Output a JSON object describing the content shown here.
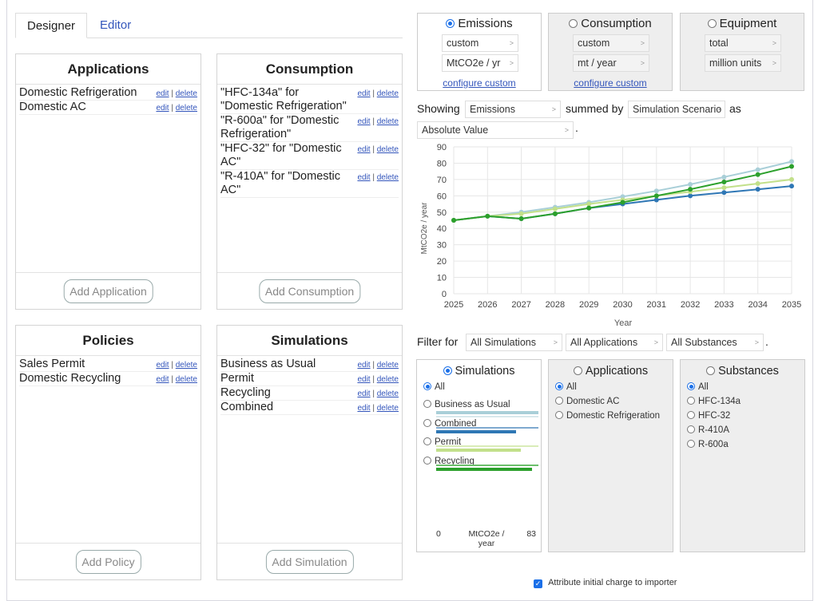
{
  "tabs": [
    {
      "label": "Designer"
    },
    {
      "label": "Editor"
    }
  ],
  "panels": {
    "applications": {
      "title": "Applications",
      "items": [
        {
          "label": "Domestic Refrigeration"
        },
        {
          "label": "Domestic AC"
        }
      ],
      "add_label": "Add Application"
    },
    "consumption": {
      "title": "Consumption",
      "items": [
        {
          "label": "\"HFC-134a\" for \"Domestic Refrigeration\""
        },
        {
          "label": "\"R-600a\" for \"Domestic Refrigeration\""
        },
        {
          "label": "\"HFC-32\" for \"Domestic AC\""
        },
        {
          "label": "\"R-410A\" for \"Domestic AC\""
        }
      ],
      "add_label": "Add Consumption"
    },
    "policies": {
      "title": "Policies",
      "items": [
        {
          "label": "Sales Permit"
        },
        {
          "label": "Domestic Recycling"
        }
      ],
      "add_label": "Add Policy"
    },
    "simulations": {
      "title": "Simulations",
      "items": [
        {
          "label": "Business as Usual"
        },
        {
          "label": "Permit"
        },
        {
          "label": "Recycling"
        },
        {
          "label": "Combined"
        }
      ],
      "add_label": "Add Simulation"
    }
  },
  "actions": {
    "edit": "edit",
    "sep": "|",
    "delete": "delete"
  },
  "metrics": {
    "emissions": {
      "label": "Emissions",
      "selected": true,
      "field1": "custom",
      "field2": "MtCO2e / yr",
      "link": "configure custom"
    },
    "consumption": {
      "label": "Consumption",
      "selected": false,
      "field1": "custom",
      "field2": "mt / year",
      "link": "configure custom"
    },
    "equipment": {
      "label": "Equipment",
      "selected": false,
      "field1": "total",
      "field2": "million units"
    }
  },
  "showing": {
    "prefix": "Showing",
    "metric": "Emissions",
    "summed_by": "summed by",
    "group": "Simulation Scenario",
    "as": "as",
    "mode": "Absolute Value",
    "period": "."
  },
  "chart_data": {
    "type": "line",
    "x": [
      2025,
      2026,
      2027,
      2028,
      2029,
      2030,
      2031,
      2032,
      2033,
      2034,
      2035
    ],
    "xlabel": "Year",
    "ylabel": "MtCO2e / year",
    "ylim": [
      0,
      90
    ],
    "yticks": [
      0,
      10,
      20,
      30,
      40,
      50,
      60,
      70,
      80,
      90
    ],
    "grid": true,
    "series": [
      {
        "name": "Business as Usual",
        "color": "#a9cfd8",
        "values": [
          45,
          47.5,
          50,
          53,
          56,
          59.5,
          63,
          67,
          71.5,
          76,
          81
        ]
      },
      {
        "name": "Combined",
        "color": "#2f77b5",
        "values": [
          45,
          47.5,
          46,
          49,
          52.5,
          55,
          57.5,
          60,
          62,
          64,
          66
        ]
      },
      {
        "name": "Permit",
        "color": "#c2e08a",
        "values": [
          45,
          47.5,
          49,
          52,
          55,
          57.5,
          60,
          62.5,
          65,
          67.5,
          70
        ]
      },
      {
        "name": "Recycling",
        "color": "#2ca02c",
        "values": [
          45,
          47.5,
          46,
          49,
          52.5,
          56,
          60,
          64,
          68.5,
          73,
          78
        ]
      }
    ]
  },
  "filter": {
    "label": "Filter for",
    "simulations": "All Simulations",
    "applications": "All Applications",
    "substances": "All Substances",
    "period": "."
  },
  "filter_boxes": {
    "simulations": {
      "title": "Simulations",
      "options": [
        {
          "label": "All",
          "checked": true
        },
        {
          "label": "Business as Usual",
          "value": 81
        },
        {
          "label": "Combined",
          "value": 66
        },
        {
          "label": "Permit",
          "value": 70
        },
        {
          "label": "Recycling",
          "value": 78
        }
      ],
      "scale_min": "0",
      "scale_unit": "MtCO2e / year",
      "scale_max": "83"
    },
    "applications": {
      "title": "Applications",
      "options": [
        {
          "label": "All",
          "checked": true
        },
        {
          "label": "Domestic AC"
        },
        {
          "label": "Domestic Refrigeration"
        }
      ]
    },
    "substances": {
      "title": "Substances",
      "options": [
        {
          "label": "All",
          "checked": true
        },
        {
          "label": "HFC-134a"
        },
        {
          "label": "HFC-32"
        },
        {
          "label": "R-410A"
        },
        {
          "label": "R-600a"
        }
      ]
    }
  },
  "footer": {
    "checkbox_label": "Attribute initial charge to importer",
    "checked": true
  }
}
